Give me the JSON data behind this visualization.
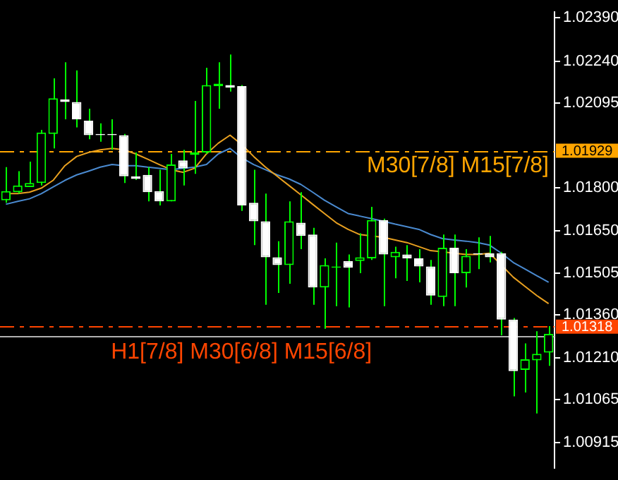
{
  "chart_data": {
    "type": "candlestick",
    "categories": [
      null,
      null,
      null,
      null,
      null,
      null,
      null,
      null,
      null,
      null,
      null,
      null,
      null,
      null,
      null,
      null,
      null,
      null,
      null,
      null,
      null,
      null,
      null,
      null,
      null,
      null,
      null,
      null,
      null,
      null,
      null,
      null,
      null,
      null,
      null,
      null,
      null,
      null,
      null,
      null,
      null,
      null,
      null,
      null,
      null,
      null,
      null
    ],
    "ohlc": [
      [
        1.01757,
        1.01872,
        1.01748,
        1.01789
      ],
      [
        1.01785,
        1.01858,
        1.0178,
        1.01808
      ],
      [
        1.01803,
        1.01891,
        1.01803,
        1.01817
      ],
      [
        1.01817,
        1.02001,
        1.01808,
        1.01992
      ],
      [
        1.01987,
        1.0218,
        1.01937,
        1.02111
      ],
      [
        1.02107,
        1.02236,
        1.02038,
        1.02098
      ],
      [
        1.02098,
        1.02208,
        1.0201,
        1.02038
      ],
      [
        1.02033,
        1.02075,
        1.01969,
        1.01983
      ],
      [
        1.01987,
        1.02024,
        1.0196,
        1.01983
      ],
      [
        1.01987,
        1.02038,
        1.01932,
        1.01983
      ],
      [
        1.01983,
        1.01987,
        1.01817,
        1.0184
      ],
      [
        1.0184,
        1.01923,
        1.01827,
        1.01831
      ],
      [
        1.01845,
        1.01872,
        1.01753,
        1.01785
      ],
      [
        1.01789,
        1.01863,
        1.01739,
        1.01753
      ],
      [
        1.01753,
        1.01918,
        1.01753,
        1.01881
      ],
      [
        1.01895,
        1.01932,
        1.01808,
        1.01868
      ],
      [
        1.01914,
        1.02102,
        1.01849,
        1.01923
      ],
      [
        1.01923,
        1.02217,
        1.01918,
        1.02157
      ],
      [
        1.02153,
        1.02236,
        1.02075,
        1.02162
      ],
      [
        1.02157,
        1.02263,
        1.02134,
        1.02148
      ],
      [
        1.02153,
        1.02157,
        1.0172,
        1.01739
      ],
      [
        1.01748,
        1.01863,
        1.01601,
        1.01684
      ],
      [
        1.01684,
        1.0178,
        1.01394,
        1.01559
      ],
      [
        1.01559,
        1.01615,
        1.01435,
        1.01532
      ],
      [
        1.01532,
        1.01753,
        1.01467,
        1.01684
      ],
      [
        1.01679,
        1.01785,
        1.01587,
        1.01633
      ],
      [
        1.01638,
        1.01661,
        1.01394,
        1.01454
      ],
      [
        1.01454,
        1.01555,
        1.01311,
        1.01532
      ],
      [
        1.01523,
        1.0161,
        1.01389,
        1.01527
      ],
      [
        1.01546,
        1.01569,
        1.01385,
        1.01523
      ],
      [
        1.01546,
        1.01642,
        1.01504,
        1.01559
      ],
      [
        1.01555,
        1.01734,
        1.0155,
        1.01688
      ],
      [
        1.01688,
        1.01693,
        1.01389,
        1.01569
      ],
      [
        1.01559,
        1.01596,
        1.01486,
        1.01578
      ],
      [
        1.01569,
        1.01601,
        1.01477,
        1.01555
      ],
      [
        1.01555,
        1.01587,
        1.01472,
        1.01527
      ],
      [
        1.01527,
        1.0155,
        1.01394,
        1.01426
      ],
      [
        1.01421,
        1.01638,
        1.01389,
        1.01592
      ],
      [
        1.01592,
        1.01638,
        1.01389,
        1.01504
      ],
      [
        1.01504,
        1.01587,
        1.01454,
        1.01564
      ],
      [
        1.01573,
        1.01628,
        1.01518,
        1.01569
      ],
      [
        1.01573,
        1.01633,
        1.01541,
        1.01559
      ],
      [
        1.01573,
        1.01578,
        1.01288,
        1.01343
      ],
      [
        1.01343,
        1.01348,
        1.01076,
        1.01164
      ],
      [
        1.01168,
        1.0126,
        1.0109,
        1.01205
      ],
      [
        1.01201,
        1.01302,
        1.01017,
        1.01224
      ],
      [
        1.01228,
        1.0132,
        1.01182,
        1.01293
      ]
    ],
    "series": [
      {
        "type": "line",
        "color": "#e8a020",
        "values": [
          1.0178,
          1.0178,
          1.01785,
          1.01799,
          1.01826,
          1.01877,
          1.01909,
          1.01923,
          1.01932,
          1.01937,
          1.01932,
          1.01918,
          1.019,
          1.01881,
          1.01863,
          1.01854,
          1.01868,
          1.01918,
          1.01955,
          1.01983,
          1.0195,
          1.01909,
          1.01872,
          1.0184,
          1.01808,
          1.01776,
          1.01743,
          1.01711,
          1.01679,
          1.01656,
          1.01638,
          1.01633,
          1.01628,
          1.01619,
          1.0161,
          1.01596,
          1.01582,
          1.01578,
          1.01573,
          1.01569,
          1.01569,
          1.01573,
          1.01532,
          1.0149,
          1.01458,
          1.01426,
          1.01398
        ]
      },
      {
        "type": "line",
        "color": "#4a8ad0",
        "values": [
          1.01743,
          1.01753,
          1.01762,
          1.0178,
          1.01803,
          1.01826,
          1.01845,
          1.01858,
          1.01872,
          1.01881,
          1.01877,
          1.01877,
          1.01872,
          1.01868,
          1.01863,
          1.01868,
          1.01872,
          1.01881,
          1.01918,
          1.01937,
          1.01904,
          1.01881,
          1.01863,
          1.01845,
          1.01831,
          1.01812,
          1.01785,
          1.01757,
          1.01734,
          1.01711,
          1.01702,
          1.01693,
          1.01684,
          1.01674,
          1.01665,
          1.01656,
          1.01638,
          1.01624,
          1.01619,
          1.01615,
          1.0161,
          1.01601,
          1.01573,
          1.01541,
          1.01518,
          1.01495,
          1.01472
        ]
      }
    ],
    "ylim": [
      1.00828,
      1.0241
    ],
    "yticks": [
      {
        "value": 1.0239,
        "label": "1.02390"
      },
      {
        "value": 1.0224,
        "label": "1.02240"
      },
      1.02095,
      {
        "value": 1.018,
        "label": "1.01800"
      },
      {
        "value": 1.0165,
        "label": "1.01650"
      },
      1.01505,
      {
        "value": 1.0136,
        "label": "1.01360"
      },
      {
        "value": 1.0121,
        "label": "1.01210"
      },
      1.01065,
      1.00915
    ],
    "tick_labels": "y",
    "annotations": [
      "1.01929",
      "1.01318"
    ],
    "ref_lines": [
      {
        "axis": "y",
        "value": 1.01929,
        "label": "M30[7/8] M15[7/8]",
        "color": "#ffa500",
        "line_style": "dashed"
      },
      {
        "axis": "y",
        "value": 1.01318,
        "label": "H1[7/8] M30[6/8] M15[6/8]",
        "color": "#ff4500",
        "line_style": "dashed"
      },
      {
        "axis": "y",
        "value": 1.01288,
        "label": null,
        "color": "#b0b0b0",
        "line_style": "solid"
      }
    ]
  }
}
